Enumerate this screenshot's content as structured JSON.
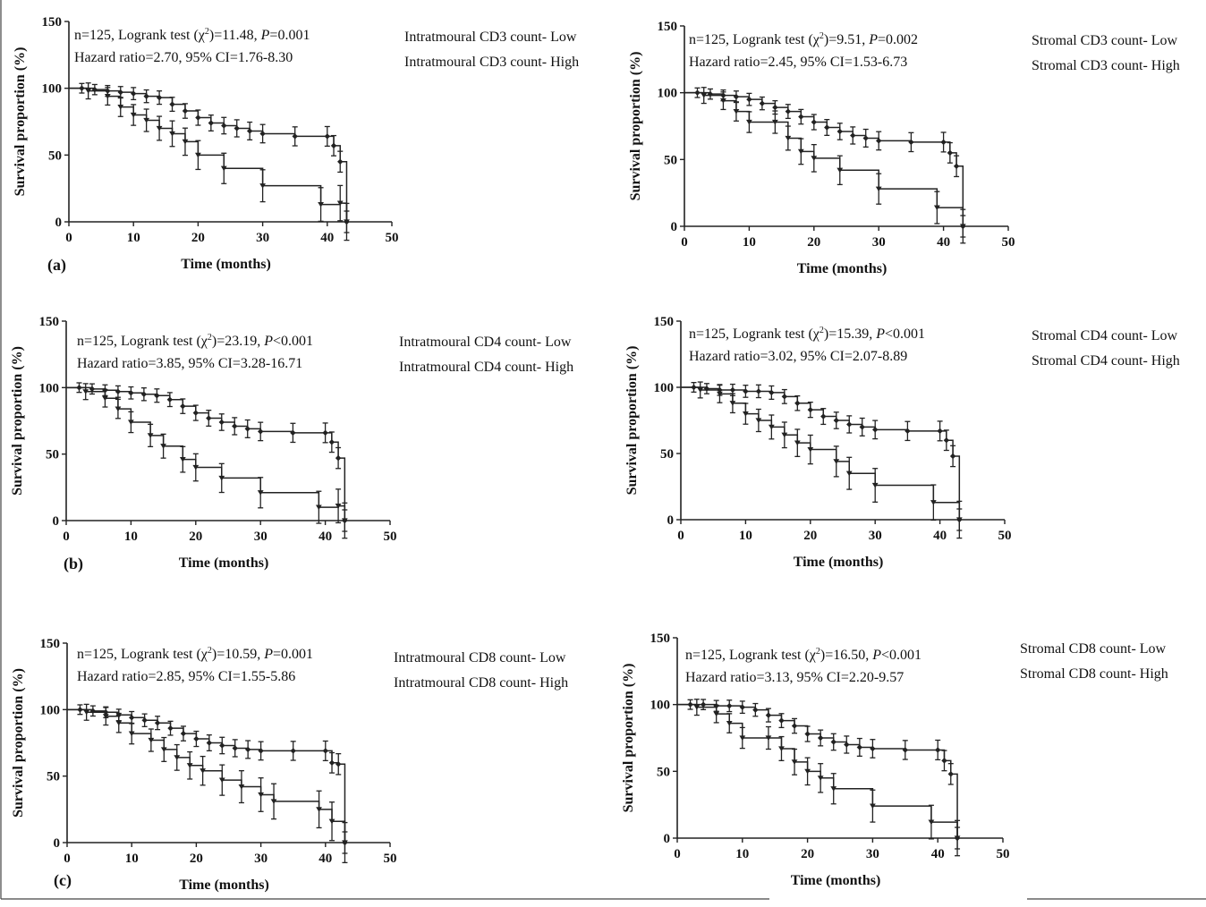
{
  "panel_labels": [
    "(a)",
    "(b)",
    "(c)"
  ],
  "chart_data": [
    {
      "type": "line",
      "title": "Intratmoural CD3",
      "xlabel": "Time (months)",
      "ylabel": "Survival proportion (%)",
      "xlim": [
        0,
        50
      ],
      "ylim": [
        0,
        150
      ],
      "xticks": [
        0,
        10,
        20,
        30,
        40,
        50
      ],
      "yticks": [
        0,
        50,
        100,
        150
      ],
      "stats_line1_prefix": "n=125, Logrank test (χ",
      "stats_chi2_sup": "2",
      "stats_chi2_mid": ")=11.48, ",
      "stats_p_symbol": "P",
      "stats_p_value": "=0.001",
      "stats_line2": "Hazard ratio=2.70, 95% CI=1.76-8.30",
      "series": [
        {
          "name": "Intratmoural CD3 count- Low",
          "x": [
            0,
            2,
            4,
            6,
            8,
            10,
            12,
            14,
            16,
            18,
            20,
            22,
            24,
            26,
            28,
            30,
            35,
            40,
            41,
            42,
            43
          ],
          "y": [
            100,
            100,
            99,
            98,
            97,
            96,
            94,
            93,
            88,
            83,
            78,
            74,
            72,
            70,
            68,
            66,
            64,
            64,
            57,
            45,
            0
          ]
        },
        {
          "name": "Intratmoural CD3 count- High",
          "x": [
            0,
            3,
            6,
            8,
            10,
            12,
            14,
            16,
            18,
            20,
            24,
            30,
            39,
            42,
            43
          ],
          "y": [
            100,
            98,
            94,
            86,
            80,
            76,
            70,
            66,
            60,
            50,
            40,
            27,
            13,
            14,
            0
          ]
        }
      ]
    },
    {
      "type": "line",
      "title": "Stromal CD3",
      "xlabel": "Time (months)",
      "ylabel": "Survival proportion (%)",
      "xlim": [
        0,
        50
      ],
      "ylim": [
        0,
        150
      ],
      "xticks": [
        0,
        10,
        20,
        30,
        40,
        50
      ],
      "yticks": [
        0,
        50,
        100,
        150
      ],
      "stats_line1_prefix": "n=125, Logrank test (χ",
      "stats_chi2_sup": "2",
      "stats_chi2_mid": ")=9.51, ",
      "stats_p_symbol": "P",
      "stats_p_value": "=0.002",
      "stats_line2": "Hazard ratio=2.45, 95% CI=1.53-6.73",
      "series": [
        {
          "name": "Stromal CD3 count- Low",
          "x": [
            0,
            2,
            4,
            6,
            8,
            10,
            12,
            14,
            16,
            18,
            20,
            22,
            24,
            26,
            28,
            30,
            35,
            40,
            41,
            42,
            43
          ],
          "y": [
            100,
            100,
            99,
            98,
            97,
            95,
            92,
            89,
            86,
            82,
            78,
            74,
            71,
            68,
            66,
            64,
            63,
            63,
            55,
            45,
            0
          ]
        },
        {
          "name": "Stromal CD3 count- High",
          "x": [
            0,
            3,
            6,
            8,
            10,
            14,
            16,
            18,
            20,
            24,
            30,
            39,
            43
          ],
          "y": [
            100,
            98,
            94,
            86,
            78,
            78,
            66,
            56,
            51,
            42,
            28,
            14,
            0
          ]
        }
      ]
    },
    {
      "type": "line",
      "title": "Intratmoural CD4",
      "xlabel": "Time (months)",
      "ylabel": "Survival proportion (%)",
      "xlim": [
        0,
        50
      ],
      "ylim": [
        0,
        150
      ],
      "xticks": [
        0,
        10,
        20,
        30,
        40,
        50
      ],
      "yticks": [
        0,
        50,
        100,
        150
      ],
      "stats_line1_prefix": "n=125, Logrank test (χ",
      "stats_chi2_sup": "2",
      "stats_chi2_mid": ")=23.19, ",
      "stats_p_symbol": "P",
      "stats_p_value": "<0.001",
      "stats_line2": "Hazard ratio=3.85, 95% CI=3.28-16.71",
      "series": [
        {
          "name": "Intratmoural CD4 count- Low",
          "x": [
            0,
            2,
            4,
            6,
            8,
            10,
            12,
            14,
            16,
            18,
            20,
            22,
            24,
            26,
            28,
            30,
            35,
            40,
            41,
            42,
            43
          ],
          "y": [
            100,
            100,
            99,
            98,
            97,
            96,
            95,
            94,
            91,
            86,
            81,
            77,
            74,
            71,
            69,
            67,
            66,
            66,
            59,
            47,
            0
          ]
        },
        {
          "name": "Intratmoural CD4 count- High",
          "x": [
            0,
            3,
            6,
            8,
            10,
            13,
            15,
            18,
            20,
            24,
            30,
            39,
            42,
            43
          ],
          "y": [
            100,
            97,
            92,
            84,
            74,
            64,
            56,
            46,
            40,
            32,
            21,
            10,
            11,
            0
          ]
        }
      ]
    },
    {
      "type": "line",
      "title": "Stromal CD4",
      "xlabel": "Time (months)",
      "ylabel": "Survival proportion (%)",
      "xlim": [
        0,
        50
      ],
      "ylim": [
        0,
        150
      ],
      "xticks": [
        0,
        10,
        20,
        30,
        40,
        50
      ],
      "yticks": [
        0,
        50,
        100,
        150
      ],
      "stats_line1_prefix": "n=125, Logrank test (χ",
      "stats_chi2_sup": "2",
      "stats_chi2_mid": ")=15.39, ",
      "stats_p_symbol": "P",
      "stats_p_value": "<0.001",
      "stats_line2": "Hazard ratio=3.02, 95% CI=2.07-8.89",
      "series": [
        {
          "name": "Stromal CD4 count- Low",
          "x": [
            0,
            2,
            4,
            6,
            8,
            10,
            12,
            14,
            16,
            18,
            20,
            22,
            24,
            26,
            28,
            30,
            35,
            40,
            41,
            42,
            43
          ],
          "y": [
            100,
            100,
            99,
            98,
            98,
            97,
            97,
            96,
            93,
            88,
            83,
            78,
            75,
            72,
            70,
            68,
            67,
            67,
            60,
            48,
            0
          ]
        },
        {
          "name": "Stromal CD4 count- High",
          "x": [
            0,
            3,
            6,
            8,
            10,
            12,
            14,
            16,
            18,
            20,
            24,
            26,
            30,
            39,
            43
          ],
          "y": [
            100,
            98,
            95,
            88,
            80,
            75,
            70,
            64,
            58,
            53,
            44,
            35,
            26,
            13,
            0
          ]
        }
      ]
    },
    {
      "type": "line",
      "title": "Intratmoural CD8",
      "xlabel": "Time (months)",
      "ylabel": "Survival proportion (%)",
      "xlim": [
        0,
        50
      ],
      "ylim": [
        0,
        150
      ],
      "xticks": [
        0,
        10,
        20,
        30,
        40,
        50
      ],
      "yticks": [
        0,
        50,
        100,
        150
      ],
      "stats_line1_prefix": "n=125, Logrank test (χ",
      "stats_chi2_sup": "2",
      "stats_chi2_mid": ")=10.59, ",
      "stats_p_symbol": "P",
      "stats_p_value": "=0.001",
      "stats_line2": "Hazard ratio=2.85, 95% CI=1.55-5.86",
      "series": [
        {
          "name": "Intratmoural CD8 count- Low",
          "x": [
            0,
            2,
            4,
            6,
            8,
            10,
            12,
            14,
            16,
            18,
            20,
            22,
            24,
            26,
            28,
            30,
            35,
            40,
            41,
            42,
            43
          ],
          "y": [
            100,
            100,
            99,
            98,
            96,
            94,
            92,
            90,
            86,
            82,
            78,
            75,
            73,
            71,
            70,
            69,
            69,
            69,
            60,
            59,
            0
          ]
        },
        {
          "name": "Intratmoural CD8 count- High",
          "x": [
            0,
            3,
            6,
            8,
            10,
            13,
            15,
            17,
            19,
            21,
            24,
            27,
            30,
            32,
            39,
            41,
            43
          ],
          "y": [
            100,
            98,
            95,
            90,
            82,
            77,
            70,
            64,
            58,
            54,
            47,
            42,
            36,
            31,
            25,
            16,
            0
          ]
        }
      ]
    },
    {
      "type": "line",
      "title": "Stromal CD8",
      "xlabel": "Time (months)",
      "ylabel": "Survival proportion (%)",
      "xlim": [
        0,
        50
      ],
      "ylim": [
        0,
        150
      ],
      "xticks": [
        0,
        10,
        20,
        30,
        40,
        50
      ],
      "yticks": [
        0,
        50,
        100,
        150
      ],
      "stats_line1_prefix": "n=125, Logrank test (χ",
      "stats_chi2_sup": "2",
      "stats_chi2_mid": ")=16.50, ",
      "stats_p_symbol": "P",
      "stats_p_value": "<0.001",
      "stats_line2": "Hazard ratio=3.13, 95% CI=2.20-9.57",
      "series": [
        {
          "name": "Stromal CD8 count- Low",
          "x": [
            0,
            2,
            4,
            6,
            8,
            10,
            12,
            14,
            16,
            18,
            20,
            22,
            24,
            26,
            28,
            30,
            35,
            40,
            41,
            42,
            43
          ],
          "y": [
            100,
            100,
            100,
            99,
            99,
            98,
            96,
            92,
            88,
            84,
            78,
            75,
            72,
            70,
            68,
            67,
            66,
            66,
            58,
            48,
            0
          ]
        },
        {
          "name": "Stromal CD8 count- High",
          "x": [
            0,
            3,
            6,
            8,
            10,
            14,
            16,
            18,
            20,
            22,
            24,
            30,
            39,
            43
          ],
          "y": [
            100,
            98,
            93,
            86,
            75,
            75,
            67,
            57,
            50,
            45,
            37,
            24,
            12,
            0
          ]
        }
      ]
    }
  ]
}
